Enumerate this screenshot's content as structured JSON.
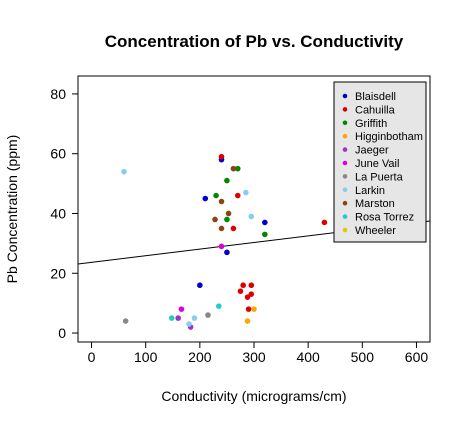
{
  "chart_data": {
    "type": "scatter",
    "title": "Concentration of Pb vs. Conductivity",
    "xlabel": "Conductivity (micrograms/cm)",
    "ylabel": "Pb Concentration (ppm)",
    "xlim": [
      -25,
      625
    ],
    "ylim": [
      -3,
      86
    ],
    "xticks": [
      0,
      100,
      200,
      300,
      400,
      500,
      600
    ],
    "yticks": [
      0,
      20,
      40,
      60,
      80
    ],
    "grid": false,
    "legend_position": "top-right",
    "regression_line": {
      "x": [
        -25,
        625
      ],
      "y": [
        23.1,
        37.5
      ]
    },
    "series": [
      {
        "name": "Blaisdell",
        "color": "#0000cc",
        "points": [
          [
            240,
            58
          ],
          [
            210,
            45
          ],
          [
            320,
            37
          ],
          [
            250,
            27
          ],
          [
            200,
            16
          ]
        ]
      },
      {
        "name": "Cahuilla",
        "color": "#dd0000",
        "points": [
          [
            240,
            59
          ],
          [
            270,
            46
          ],
          [
            262,
            35
          ],
          [
            430,
            37
          ],
          [
            295,
            16
          ],
          [
            280,
            16
          ],
          [
            275,
            14
          ],
          [
            295,
            13
          ],
          [
            288,
            12
          ],
          [
            290,
            8
          ]
        ]
      },
      {
        "name": "Griffith",
        "color": "#008800",
        "points": [
          [
            270,
            55
          ],
          [
            250,
            51
          ],
          [
            230,
            46
          ],
          [
            250,
            38
          ],
          [
            320,
            33
          ]
        ]
      },
      {
        "name": "Higginbotham",
        "color": "#ffa500",
        "points": [
          [
            300,
            8
          ],
          [
            288,
            4
          ]
        ]
      },
      {
        "name": "Jaeger",
        "color": "#9933cc",
        "points": [
          [
            160,
            5
          ],
          [
            183,
            2
          ]
        ]
      },
      {
        "name": "June Vail",
        "color": "#dd00dd",
        "points": [
          [
            240,
            29
          ],
          [
            166,
            8
          ]
        ]
      },
      {
        "name": "La Puerta",
        "color": "#888888",
        "points": [
          [
            63,
            4
          ],
          [
            215,
            6
          ]
        ]
      },
      {
        "name": "Larkin",
        "color": "#88ccee",
        "points": [
          [
            60,
            54
          ],
          [
            285,
            47
          ],
          [
            295,
            39
          ],
          [
            190,
            5
          ],
          [
            180,
            3
          ]
        ]
      },
      {
        "name": "Marston",
        "color": "#8b4513",
        "points": [
          [
            262,
            55
          ],
          [
            240,
            44
          ],
          [
            228,
            38
          ],
          [
            253,
            40
          ],
          [
            240,
            35
          ]
        ]
      },
      {
        "name": "Rosa Torrez",
        "color": "#22cccc",
        "points": [
          [
            235,
            9
          ],
          [
            148,
            5
          ]
        ]
      },
      {
        "name": "Wheeler",
        "color": "#ddcc00",
        "points": []
      }
    ]
  }
}
